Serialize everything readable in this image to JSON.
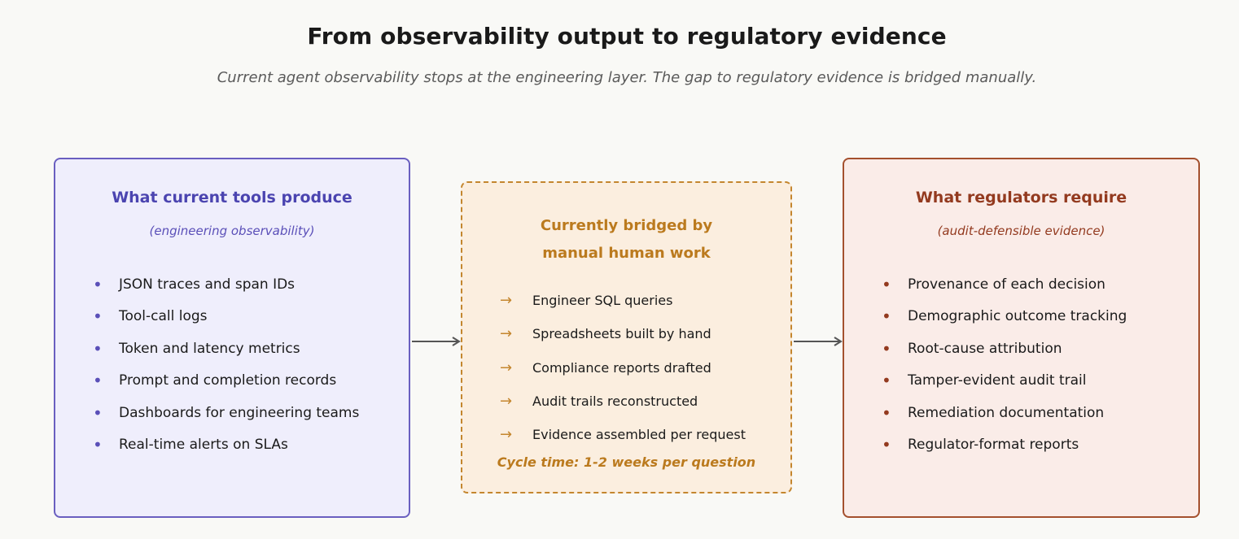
{
  "header": {
    "title": "From observability output to regulatory evidence",
    "subtitle": "Current agent observability stops at the engineering layer. The gap to regulatory evidence is bridged manually."
  },
  "left": {
    "title": "What current tools produce",
    "subtitle": "(engineering observability)",
    "bullet": "•",
    "items": [
      "JSON traces and span IDs",
      "Tool-call logs",
      "Token and latency metrics",
      "Prompt and completion records",
      "Dashboards for engineering teams",
      "Real-time alerts on SLAs"
    ]
  },
  "middle": {
    "title_line1": "Currently bridged by",
    "title_line2": "manual human work",
    "arrow": "→",
    "items": [
      "Engineer SQL queries",
      "Spreadsheets built by hand",
      "Compliance reports drafted",
      "Audit trails reconstructed",
      "Evidence assembled per request"
    ],
    "cycle": "Cycle time: 1-2 weeks per question"
  },
  "right": {
    "title": "What regulators require",
    "subtitle": "(audit-defensible evidence)",
    "bullet": "•",
    "items": [
      "Provenance of each decision",
      "Demographic outcome tracking",
      "Root-cause attribution",
      "Tamper-evident audit trail",
      "Remediation documentation",
      "Regulator-format reports"
    ]
  },
  "colors": {
    "left_accent": "#4b44b0",
    "middle_accent": "#bb7a1e",
    "right_accent": "#933a1f",
    "connector": "#555555"
  }
}
